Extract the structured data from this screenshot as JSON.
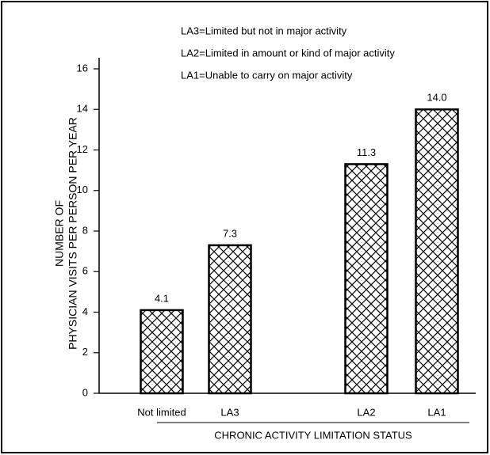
{
  "chart_data": {
    "type": "bar",
    "notes": [
      "LA3=Limited but not in major activity",
      "LA2=Limited in amount or kind of major activity",
      "LA1=Unable to carry on major activity"
    ],
    "y_label": [
      "NUMBER OF",
      "PHYSICIAN VISITS PER PERSON PER YEAR"
    ],
    "x_label": "CHRONIC ACTIVITY LIMITATION STATUS",
    "categories": [
      "Not limited",
      "LA3",
      "LA2",
      "LA1"
    ],
    "values": [
      4.1,
      7.3,
      11.3,
      14.0
    ],
    "value_labels": [
      "4.1",
      "7.3",
      "11.3",
      "14.0"
    ],
    "color": "#000000",
    "ylim": [
      0,
      16
    ],
    "yticks": [
      0,
      2,
      4,
      6,
      8,
      10,
      12,
      14,
      16
    ],
    "grid": false
  }
}
